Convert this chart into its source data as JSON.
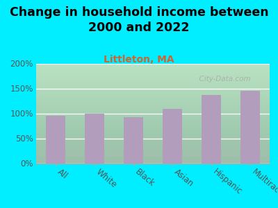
{
  "title": "Change in household income between\n2000 and 2022",
  "subtitle": "Littleton, MA",
  "categories": [
    "All",
    "White",
    "Black",
    "Asian",
    "Hispanic",
    "Multirace"
  ],
  "values": [
    95,
    99,
    93,
    109,
    137,
    145
  ],
  "bar_color": "#b39dbd",
  "background_outer": "#00eeff",
  "ylim": [
    0,
    200
  ],
  "yticks": [
    0,
    50,
    100,
    150,
    200
  ],
  "watermark": "  City-Data.com",
  "title_fontsize": 12.5,
  "subtitle_fontsize": 10,
  "subtitle_color": "#cc6633",
  "tick_label_color": "#555555",
  "ytick_color": "#555555"
}
